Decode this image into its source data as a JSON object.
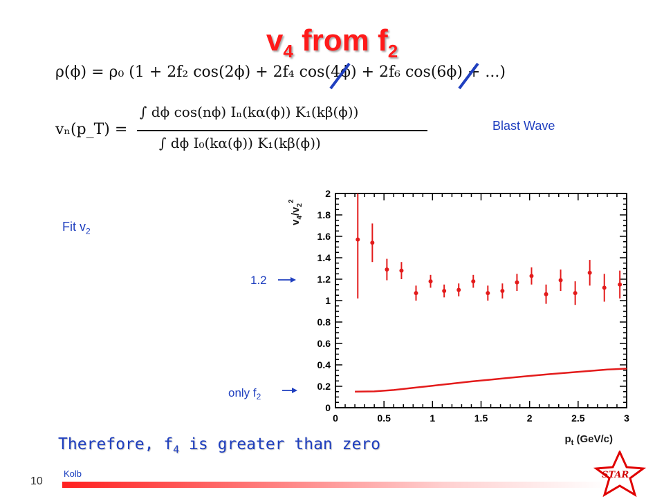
{
  "slide": {
    "title_main": "v",
    "title_sub1": "4",
    "title_mid": " from f",
    "title_sub2": "2",
    "page_number": "10",
    "author_note": "Kolb",
    "logo_text": "STAR",
    "model_label": "Blast Wave",
    "fit_label_main": "Fit v",
    "fit_label_sub": "2",
    "conclusion_pre": "Therefore, f",
    "conclusion_sub": "4",
    "conclusion_post": " is greater than zero",
    "equation1": "ρ(ϕ) = ρ₀ (1 + 2f₂ cos(2ϕ) + 2f₄ cos(4ϕ) + 2f₆ cos(6ϕ) + ...)",
    "equation2_lhs": "vₙ(p_T) =",
    "equation2_num": "∫ dϕ cos(nϕ) Iₙ(kα(ϕ)) K₁(kβ(ϕ))",
    "equation2_den": "∫ dϕ I₀(kα(ϕ)) K₁(kβ(ϕ))",
    "annotation_12": "1.2",
    "annotation_onlyf2_main": "only f",
    "annotation_onlyf2_sub": "2"
  },
  "colors": {
    "title": "#ff1a1a",
    "data": "#e31b1b",
    "annotation": "#1f3fbf",
    "strike": "#1f3fbf"
  },
  "chart_data": {
    "type": "scatter",
    "xlabel": "p (GeV/c)",
    "xlabel_sub": "t",
    "ylabel": "v4/v2^2",
    "xlim": [
      0,
      3
    ],
    "ylim": [
      0,
      2
    ],
    "xticks": [
      "0",
      "0.5",
      "1",
      "1.5",
      "2",
      "2.5",
      "3"
    ],
    "yticks": [
      "0",
      "0.2",
      "0.4",
      "0.6",
      "0.8",
      "1",
      "1.2",
      "1.4",
      "1.6",
      "1.8",
      "2"
    ],
    "series": [
      {
        "kind": "points",
        "x": [
          0.23,
          0.38,
          0.53,
          0.68,
          0.83,
          0.98,
          1.12,
          1.27,
          1.42,
          1.57,
          1.72,
          1.87,
          2.02,
          2.17,
          2.32,
          2.47,
          2.62,
          2.77,
          2.93
        ],
        "y": [
          1.57,
          1.54,
          1.29,
          1.28,
          1.07,
          1.18,
          1.09,
          1.1,
          1.18,
          1.07,
          1.09,
          1.17,
          1.23,
          1.06,
          1.19,
          1.07,
          1.26,
          1.12,
          1.15
        ],
        "err": [
          0.55,
          0.18,
          0.1,
          0.08,
          0.07,
          0.06,
          0.06,
          0.06,
          0.06,
          0.07,
          0.07,
          0.08,
          0.08,
          0.09,
          0.1,
          0.11,
          0.12,
          0.13,
          0.13
        ]
      },
      {
        "kind": "line",
        "x": [
          0.2,
          0.4,
          0.6,
          0.8,
          1.0,
          1.2,
          1.4,
          1.6,
          1.8,
          2.0,
          2.2,
          2.4,
          2.6,
          2.8,
          3.0
        ],
        "y": [
          0.15,
          0.152,
          0.165,
          0.185,
          0.205,
          0.225,
          0.245,
          0.262,
          0.28,
          0.297,
          0.313,
          0.328,
          0.342,
          0.356,
          0.365
        ]
      }
    ]
  }
}
